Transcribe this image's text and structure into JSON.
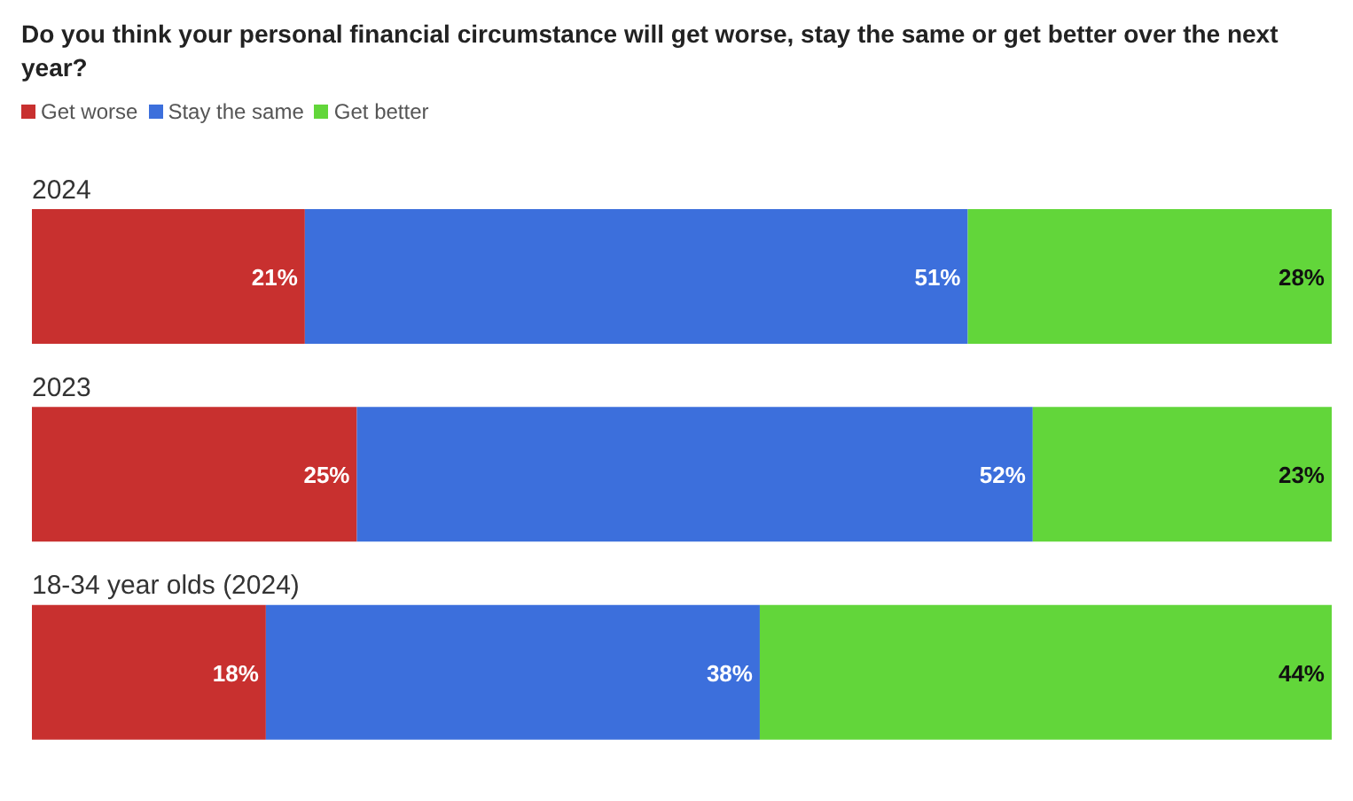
{
  "chart_data": {
    "type": "bar",
    "orientation": "horizontal",
    "stacked": true,
    "title": "Do you think your personal financial circumstance will get worse, stay the same or get better over the next year?",
    "categories": [
      "2024",
      "2023",
      "18-34 year olds (2024)"
    ],
    "series": [
      {
        "name": "Get worse",
        "color": "#c8302f",
        "values": [
          21,
          25,
          18
        ],
        "value_labels": [
          "21%",
          "25%",
          "18%"
        ]
      },
      {
        "name": "Stay the same",
        "color": "#3c6fdc",
        "values": [
          51,
          52,
          38
        ],
        "value_labels": [
          "51%",
          "52%",
          "38%"
        ]
      },
      {
        "name": "Get better",
        "color": "#62d63a",
        "values": [
          28,
          23,
          44
        ],
        "value_labels": [
          "28%",
          "23%",
          "44%"
        ]
      }
    ],
    "xlim": [
      0,
      100
    ],
    "tick_labels": false,
    "legend": "top left"
  }
}
